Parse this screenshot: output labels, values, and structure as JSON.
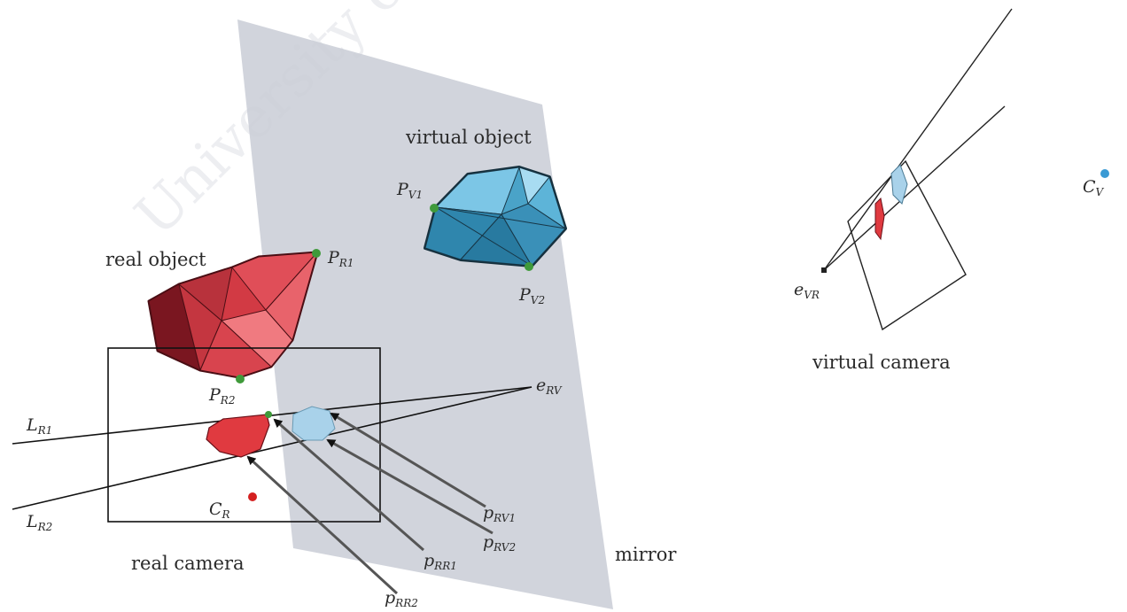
{
  "colors": {
    "real_object": "#d23a44",
    "real_object_dark": "#7a1620",
    "virtual_object": "#4aa3c8",
    "virtual_object_dark": "#1a3a4a",
    "mirror": "#c9ccd6",
    "point": "#3f9a3a",
    "camera_center_real": "#d42020",
    "camera_center_virtual": "#3a9ad4"
  },
  "labels": {
    "virtual_object": "virtual object",
    "real_object": "real object",
    "real_camera": "real camera",
    "virtual_camera": "virtual camera",
    "mirror": "mirror",
    "watermark": "University of"
  },
  "points": {
    "P_V1": {
      "main": "P",
      "sub": "V1"
    },
    "P_V2": {
      "main": "P",
      "sub": "V2"
    },
    "P_R1": {
      "main": "P",
      "sub": "R1"
    },
    "P_R2": {
      "main": "P",
      "sub": "R2"
    },
    "e_RV": {
      "main": "e",
      "sub": "RV"
    },
    "e_VR": {
      "main": "e",
      "sub": "VR"
    },
    "L_R1": {
      "main": "L",
      "sub": "R1"
    },
    "L_R2": {
      "main": "L",
      "sub": "R2"
    },
    "C_R": {
      "main": "C",
      "sub": "R"
    },
    "C_V": {
      "main": "C",
      "sub": "V"
    },
    "p_RV1": {
      "main": "p",
      "sub": "RV1"
    },
    "p_RV2": {
      "main": "p",
      "sub": "RV2"
    },
    "p_RR1": {
      "main": "p",
      "sub": "RR1"
    },
    "p_RR2": {
      "main": "p",
      "sub": "RR2"
    }
  }
}
